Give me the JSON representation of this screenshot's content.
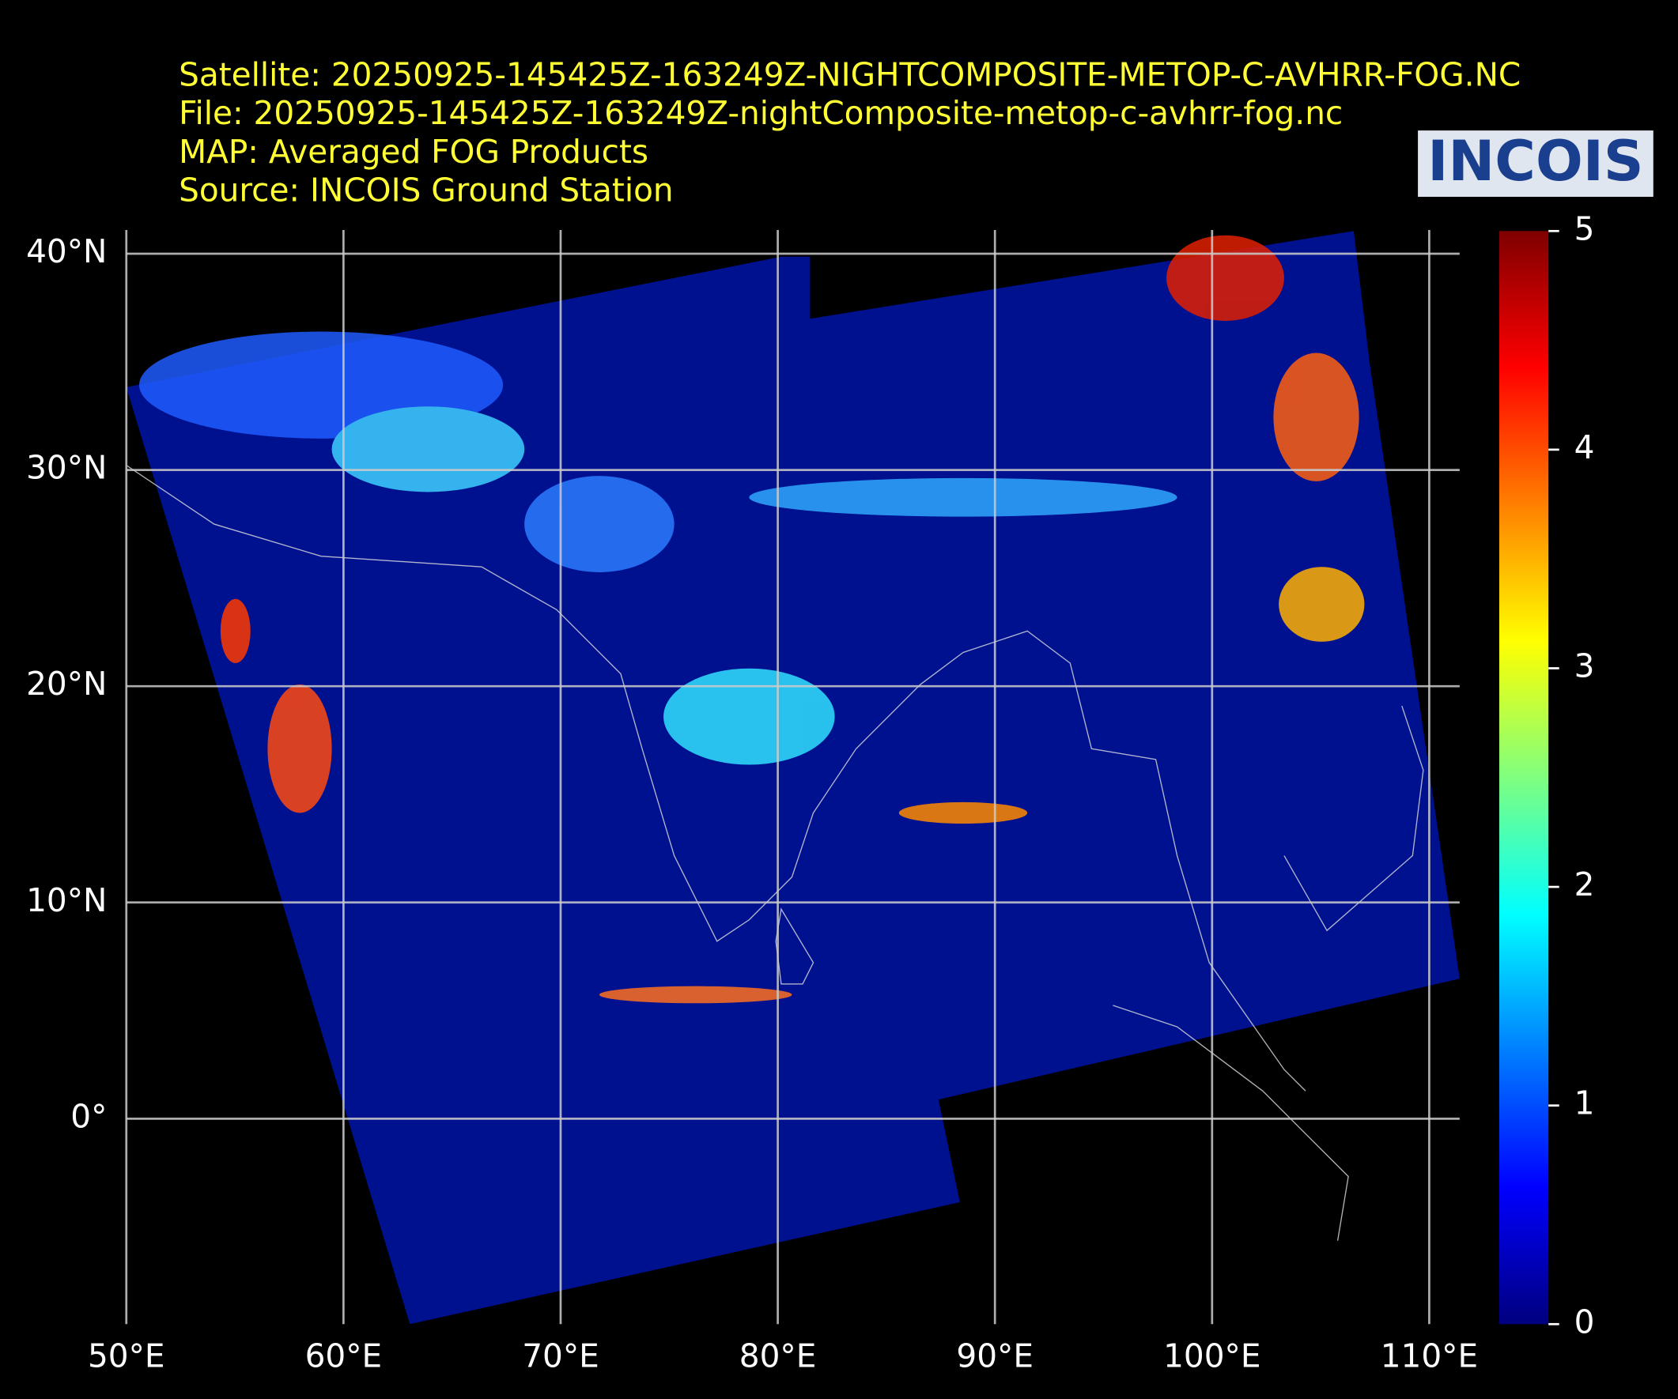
{
  "chart_data": {
    "type": "raster-map",
    "header": [
      "Satellite: 20250925-145425Z-163249Z-NIGHTCOMPOSITE-METOP-C-AVHRR-FOG.NC",
      "File: 20250925-145425Z-163249Z-nightComposite-metop-c-avhrr-fog.nc",
      "MAP: Averaged FOG Products",
      "Source: INCOIS Ground Station"
    ],
    "logo": "INCOIS",
    "xlim": [
      50,
      111.4
    ],
    "ylim": [
      -9.5,
      41.1
    ],
    "xticks": [
      {
        "value": 50,
        "label": "50°E"
      },
      {
        "value": 60,
        "label": "60°E"
      },
      {
        "value": 70,
        "label": "70°E"
      },
      {
        "value": 80,
        "label": "80°E"
      },
      {
        "value": 90,
        "label": "90°E"
      },
      {
        "value": 100,
        "label": "100°E"
      },
      {
        "value": 110,
        "label": "110°E"
      }
    ],
    "yticks": [
      {
        "value": 0,
        "label": "0°"
      },
      {
        "value": 10,
        "label": "10°N"
      },
      {
        "value": 20,
        "label": "20°N"
      },
      {
        "value": 30,
        "label": "30°N"
      },
      {
        "value": 40,
        "label": "40°N"
      }
    ],
    "grid": true,
    "colormap": "jet",
    "clim": [
      0,
      5
    ],
    "cticks": [
      0,
      1,
      2,
      3,
      4,
      5
    ]
  }
}
